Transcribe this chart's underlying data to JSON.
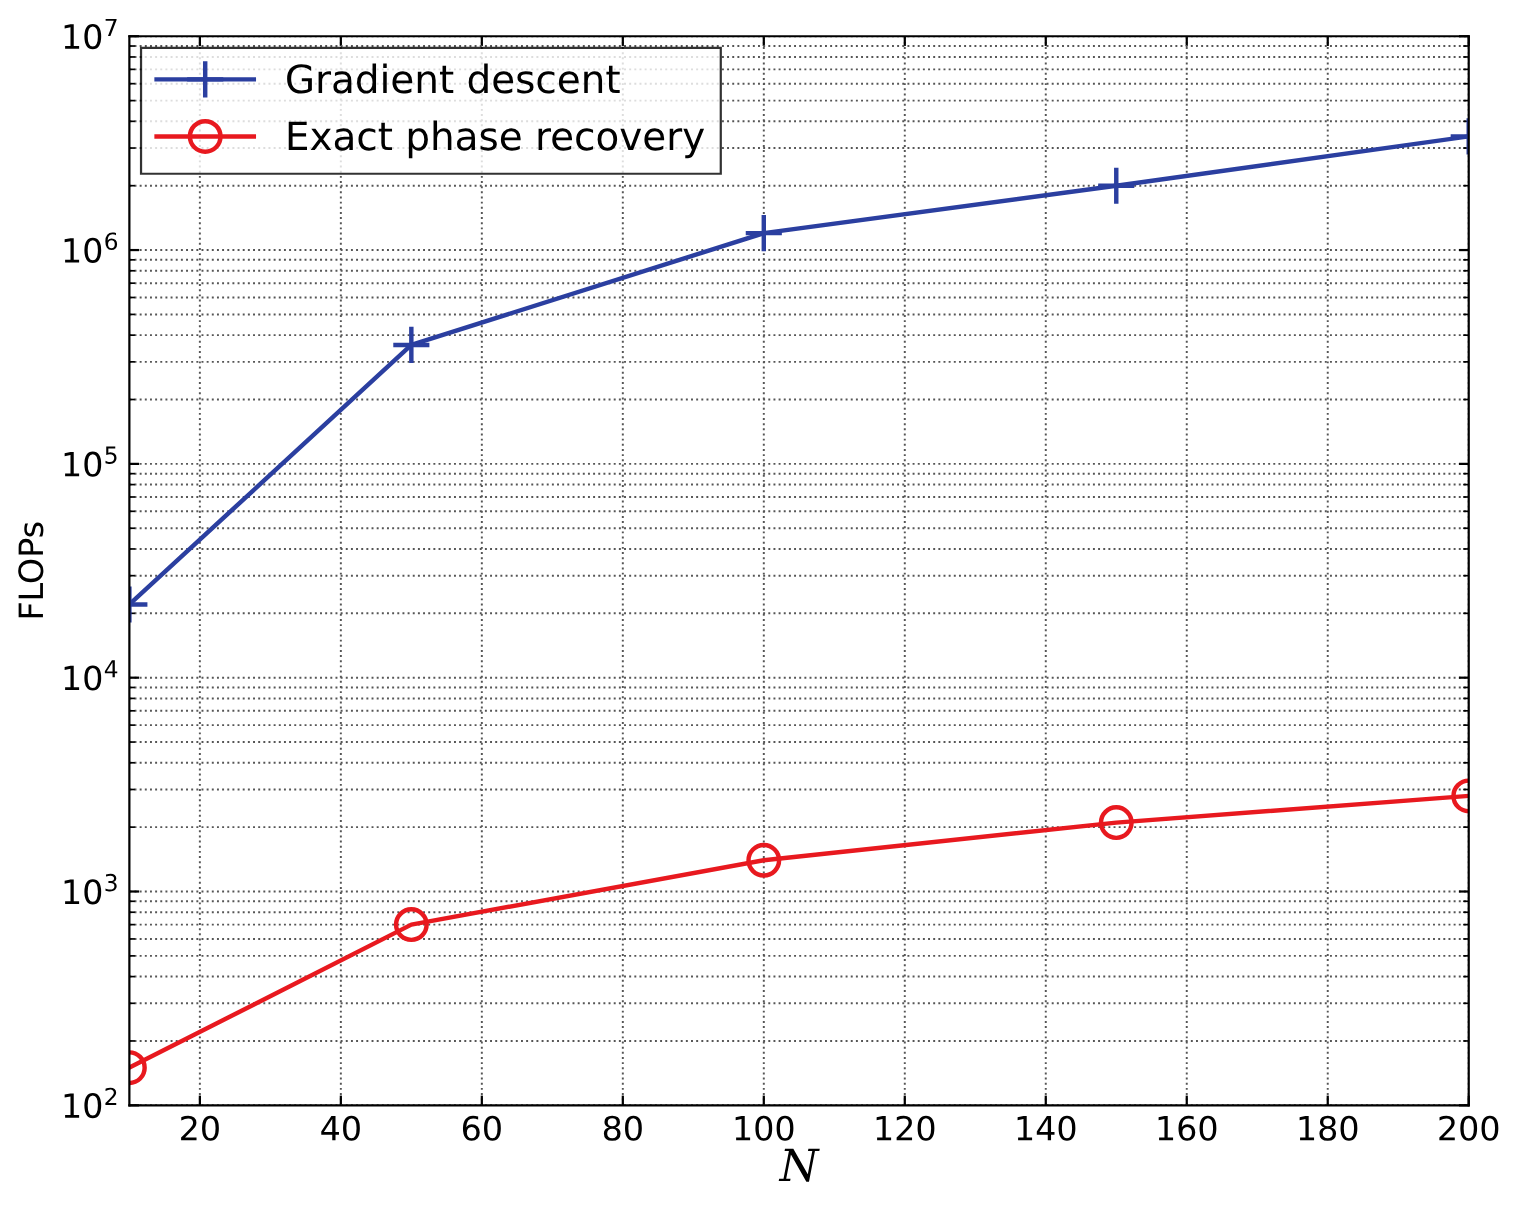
{
  "chart_data": {
    "type": "line",
    "xlabel": "N",
    "ylabel": "FLOPs",
    "log": "y",
    "grid": true,
    "legend": "top left",
    "line_style": "solid",
    "xlim": [
      10,
      200
    ],
    "xticks": [
      20,
      40,
      60,
      80,
      100,
      120,
      140,
      160,
      180,
      200
    ],
    "ylim": [
      100,
      10000000
    ],
    "yticks": [
      {
        "value": 100,
        "label": "10$^{2}$"
      },
      {
        "value": 1000,
        "label": "10$^{3}$"
      },
      {
        "value": 10000,
        "label": "10$^{4}$"
      },
      {
        "value": 100000,
        "label": "10$^{5}$"
      },
      {
        "value": 1000000,
        "label": "10$^{6}$"
      },
      {
        "value": 10000000,
        "label": "10$^{7}$"
      }
    ],
    "x": [
      10,
      50,
      100,
      150,
      200
    ],
    "series": [
      {
        "name": "Gradient descent",
        "color": "#2b3fa0",
        "marker": "cross",
        "values": [
          22000,
          360000,
          1200000,
          2000000,
          3400000
        ]
      },
      {
        "name": "Exact phase recovery",
        "color": "#e8191f",
        "marker": "circle",
        "values": [
          150,
          700,
          1400,
          2100,
          2800
        ]
      }
    ]
  }
}
